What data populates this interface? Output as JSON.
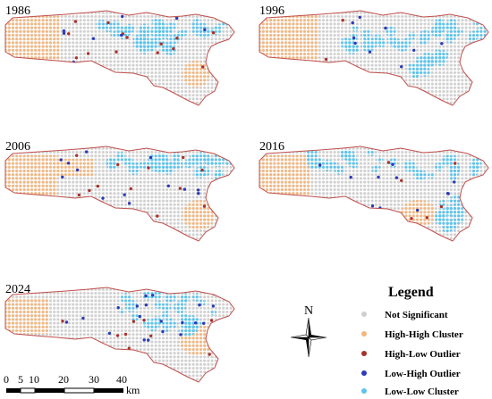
{
  "maps": [
    {
      "year": "1986"
    },
    {
      "year": "1996"
    },
    {
      "year": "2006"
    },
    {
      "year": "2016"
    },
    {
      "year": "2024"
    }
  ],
  "legend": {
    "title": "Legend",
    "items": [
      {
        "label": "Not Significant",
        "color": "#cfcfcf"
      },
      {
        "label": "High-High Cluster",
        "color": "#f2b77f"
      },
      {
        "label": "High-Low Outlier",
        "color": "#a8322a"
      },
      {
        "label": "Low-High Outlier",
        "color": "#2b3ab8"
      },
      {
        "label": "Low-Low Cluster",
        "color": "#5ec3ea"
      }
    ]
  },
  "north_arrow": {
    "label": "N"
  },
  "scale_bar": {
    "ticks": [
      "0",
      "5",
      "10",
      "20",
      "30",
      "40"
    ],
    "unit": "km"
  },
  "colors": {
    "outline": "#c0504d",
    "not_significant": "#cfcfcf",
    "high_high": "#f2b77f",
    "low_low": "#5ec3ea",
    "high_low": "#a8322a",
    "low_high": "#2b3ab8"
  }
}
